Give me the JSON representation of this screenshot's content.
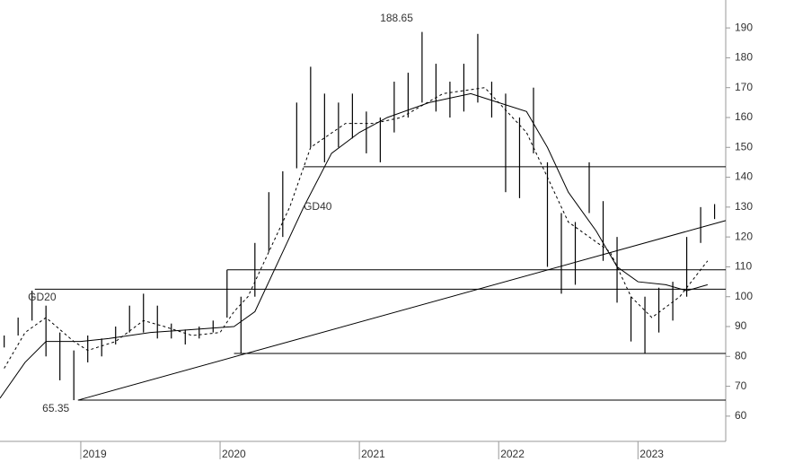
{
  "chart_data": {
    "type": "hl",
    "xlim": [
      2018.42,
      2023.63
    ],
    "ylim": [
      51.55,
      199.35
    ],
    "xticks": [
      2019,
      2020,
      2021,
      2022,
      2023
    ],
    "yticks": [
      60,
      70,
      80,
      90,
      100,
      110,
      120,
      130,
      140,
      150,
      160,
      170,
      180,
      190
    ],
    "color": "#000000",
    "x": [
      2018.45,
      2018.55,
      2018.65,
      2018.75,
      2018.85,
      2018.95,
      2019.05,
      2019.15,
      2019.25,
      2019.35,
      2019.45,
      2019.55,
      2019.65,
      2019.75,
      2019.85,
      2019.95,
      2020.05,
      2020.15,
      2020.25,
      2020.35,
      2020.45,
      2020.55,
      2020.65,
      2020.75,
      2020.85,
      2020.95,
      2021.05,
      2021.15,
      2021.25,
      2021.35,
      2021.45,
      2021.55,
      2021.65,
      2021.75,
      2021.85,
      2021.95,
      2022.05,
      2022.15,
      2022.25,
      2022.35,
      2022.45,
      2022.55,
      2022.65,
      2022.75,
      2022.85,
      2022.95,
      2023.05,
      2023.15,
      2023.25,
      2023.35,
      2023.45,
      2023.55
    ],
    "low": [
      83,
      87,
      92,
      80,
      72,
      65.35,
      78,
      80,
      84,
      88,
      88,
      86,
      86,
      84,
      86,
      88,
      93,
      81,
      100,
      115,
      120,
      143,
      150,
      145,
      150,
      153,
      148,
      145,
      155,
      160,
      165,
      162,
      160,
      162,
      165,
      160,
      135,
      133,
      148,
      110,
      101,
      104,
      128,
      112,
      98,
      85,
      81,
      88,
      92,
      100,
      118,
      126
    ],
    "high": [
      87,
      93,
      102,
      97,
      88,
      82,
      87,
      86,
      90,
      97,
      101,
      97,
      91,
      89,
      90,
      92,
      109,
      100,
      118,
      135,
      142,
      165,
      177,
      168,
      165,
      168,
      162,
      160,
      172,
      175,
      188.65,
      178,
      172,
      178,
      188,
      172,
      168,
      160,
      170,
      145,
      128,
      125,
      145,
      132,
      120,
      100,
      100,
      103,
      105,
      120,
      130,
      131
    ],
    "ma": [
      {
        "label": "GD20",
        "dash": true,
        "x": [
          2018.45,
          2018.6,
          2018.75,
          2018.95,
          2019.05,
          2019.25,
          2019.45,
          2019.6,
          2019.8,
          2020.0,
          2020.1,
          2020.2,
          2020.35,
          2020.5,
          2020.65,
          2020.9,
          2021.1,
          2021.3,
          2021.6,
          2021.9,
          2022.1,
          2022.2,
          2022.35,
          2022.5,
          2022.65,
          2022.8,
          2022.95,
          2023.1,
          2023.3,
          2023.5
        ],
        "values": [
          76,
          88,
          93,
          85,
          82,
          85,
          92,
          90,
          87,
          88,
          95,
          100,
          115,
          130,
          150,
          158,
          158,
          160,
          168,
          170,
          160,
          155,
          140,
          125,
          120,
          115,
          100,
          93,
          100,
          112
        ]
      },
      {
        "label": "GD40",
        "dash": false,
        "x": [
          2018.42,
          2018.6,
          2018.75,
          2019.0,
          2019.2,
          2019.5,
          2019.8,
          2020.1,
          2020.25,
          2020.45,
          2020.6,
          2020.8,
          2021.0,
          2021.2,
          2021.5,
          2021.8,
          2022.0,
          2022.2,
          2022.35,
          2022.5,
          2022.7,
          2022.85,
          2023.0,
          2023.2,
          2023.35,
          2023.5
        ],
        "values": [
          66,
          78,
          85,
          85,
          86,
          88,
          89,
          90,
          95,
          115,
          130,
          148,
          155,
          160,
          165,
          168,
          165,
          162,
          150,
          135,
          122,
          110,
          105,
          104,
          102,
          104
        ]
      }
    ],
    "levels": [
      {
        "value": 143.5,
        "from": 2020.6
      },
      {
        "value": 109,
        "from": 2020.05
      },
      {
        "value": 102.5,
        "from": 2018.67
      },
      {
        "value": 81,
        "from": 2020.1
      },
      {
        "value": 65.35,
        "from": 2018.98
      }
    ],
    "trendline": {
      "x": [
        2018.98,
        2023.63
      ],
      "y": [
        65.35,
        125.5
      ]
    },
    "annotations": [
      {
        "label": "188.65",
        "x": 2021.45,
        "value": 188.65
      },
      {
        "label": "65.35",
        "x": 2018.95,
        "value": 65.35
      }
    ]
  }
}
